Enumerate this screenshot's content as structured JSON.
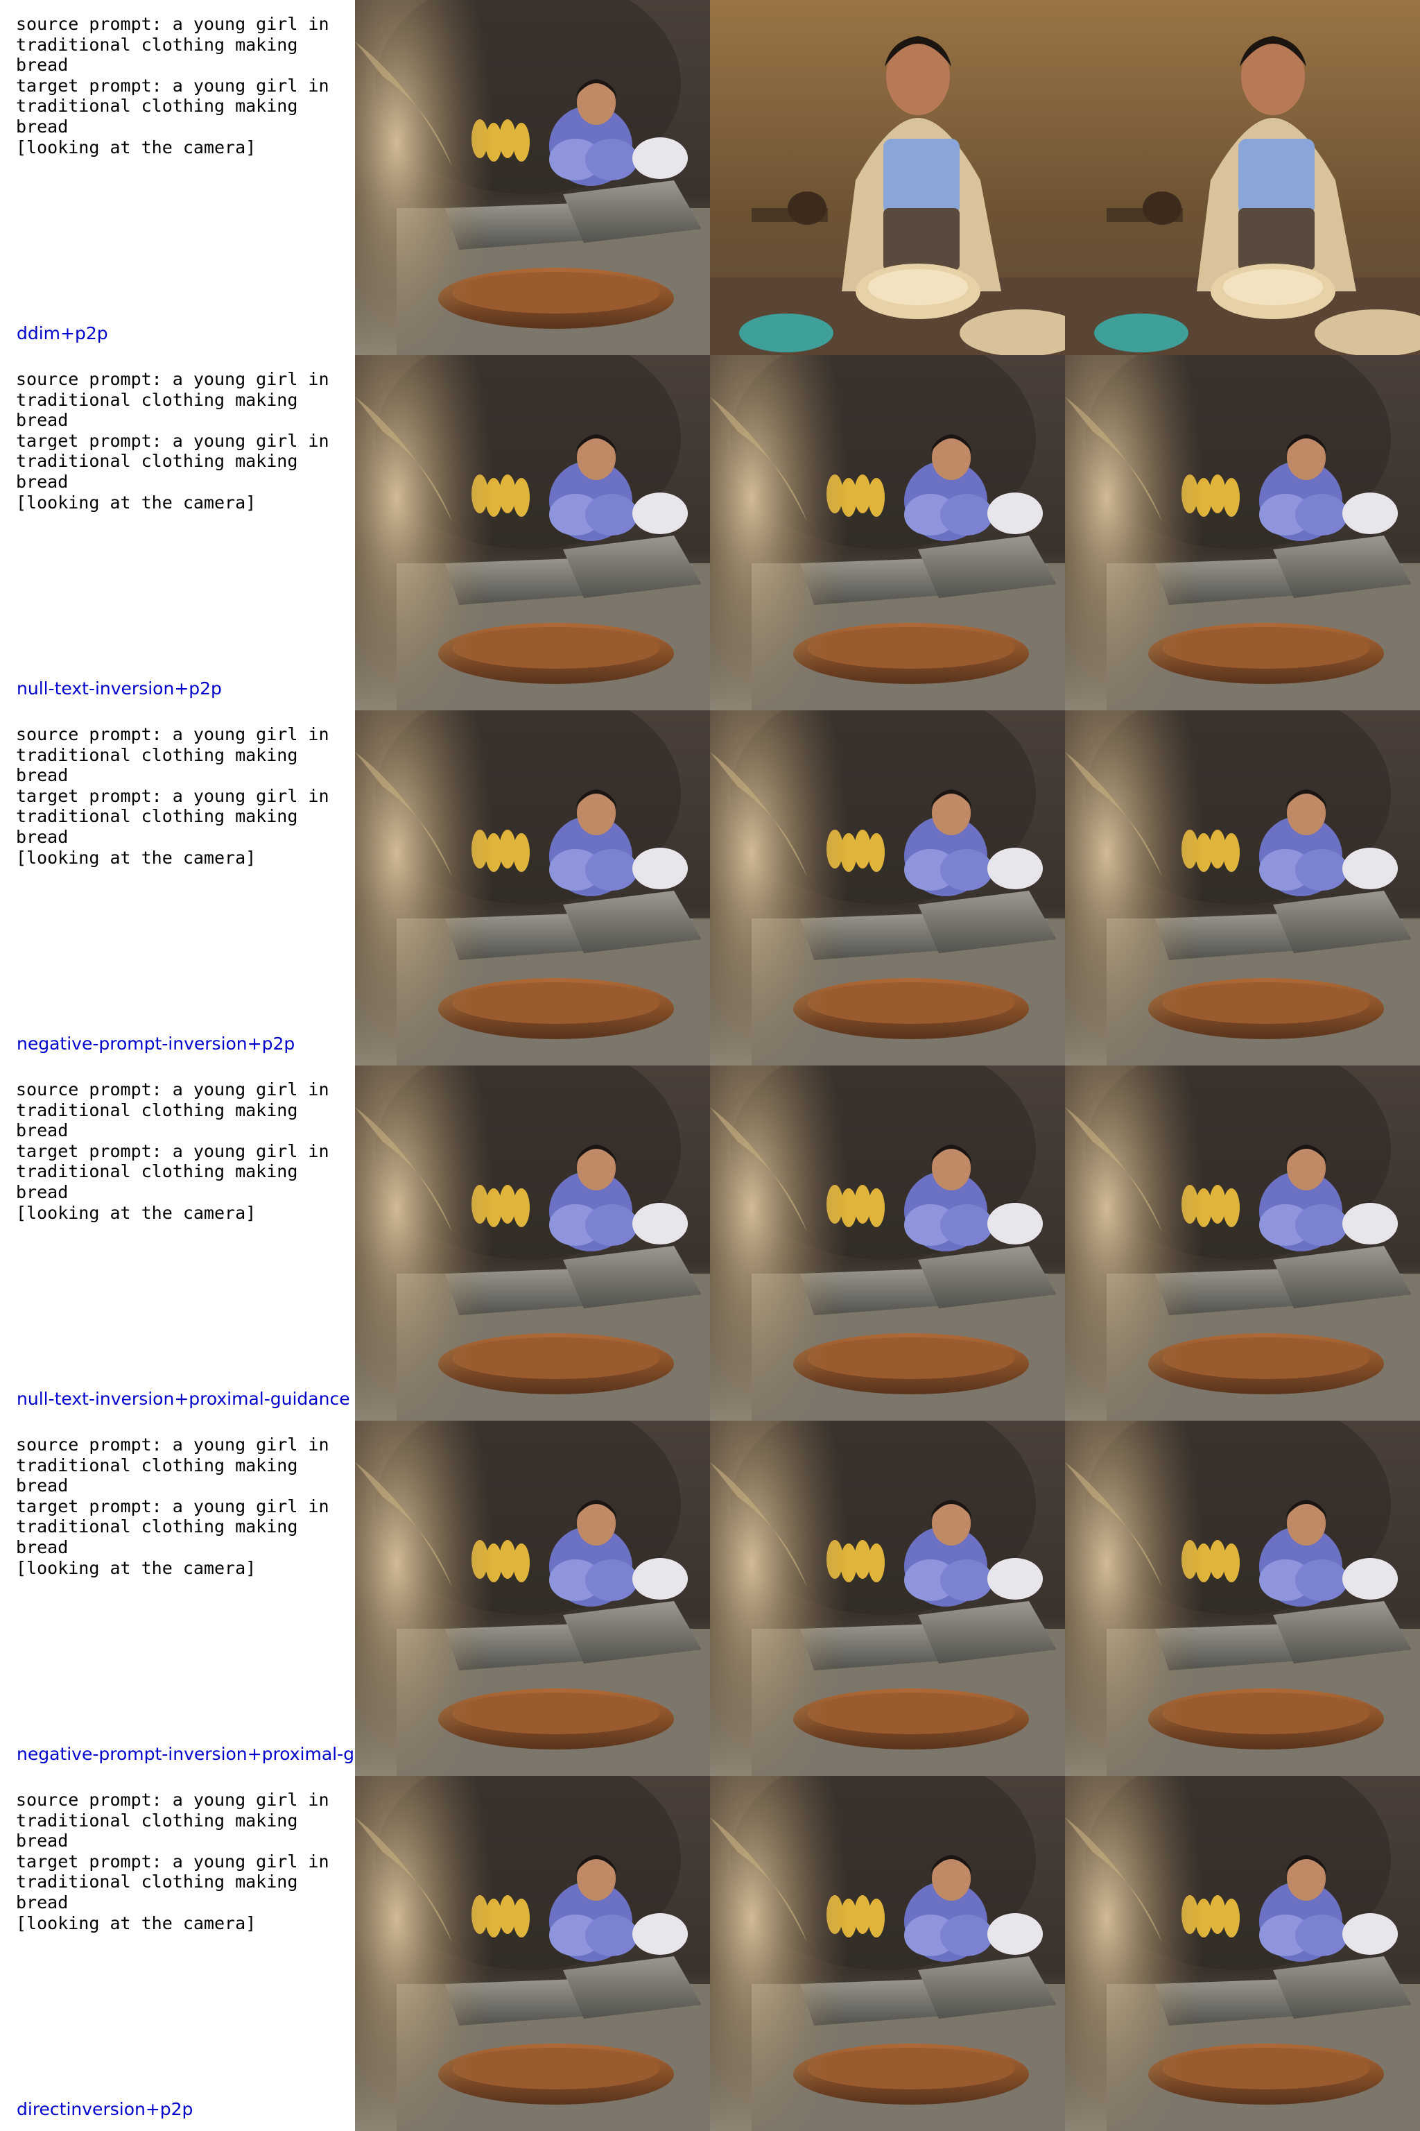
{
  "rows": [
    {
      "prompt": "source prompt: a young girl in\ntraditional clothing making bread\ntarget prompt: a young girl in\ntraditional clothing making bread\n[looking at the camera]",
      "method": "ddim+p2p",
      "images": [
        "scene-original",
        "scene-looking-camera",
        "scene-looking-camera"
      ]
    },
    {
      "prompt": "source prompt: a young girl in\ntraditional clothing making bread\ntarget prompt: a young girl in\ntraditional clothing making bread\n[looking at the camera]",
      "method": "null-text-inversion+p2p",
      "images": [
        "scene-original",
        "scene-original",
        "scene-original"
      ]
    },
    {
      "prompt": "source prompt: a young girl in\ntraditional clothing making bread\ntarget prompt: a young girl in\ntraditional clothing making bread\n[looking at the camera]",
      "method": "negative-prompt-inversion+p2p",
      "images": [
        "scene-original",
        "scene-original",
        "scene-original"
      ]
    },
    {
      "prompt": "source prompt: a young girl in\ntraditional clothing making bread\ntarget prompt: a young girl in\ntraditional clothing making bread\n[looking at the camera]",
      "method": "null-text-inversion+proximal-guidance",
      "images": [
        "scene-original",
        "scene-original",
        "scene-original"
      ]
    },
    {
      "prompt": "source prompt: a young girl in\ntraditional clothing making bread\ntarget prompt: a young girl in\ntraditional clothing making bread\n[looking at the camera]",
      "method": "negative-prompt-inversion+proximal-g",
      "images": [
        "scene-original",
        "scene-original",
        "scene-original"
      ]
    },
    {
      "prompt": "source prompt: a young girl in\ntraditional clothing making bread\ntarget prompt: a young girl in\ntraditional clothing making bread\n[looking at the camera]",
      "method": "directinversion+p2p",
      "images": [
        "scene-original",
        "scene-original",
        "scene-original"
      ]
    }
  ]
}
